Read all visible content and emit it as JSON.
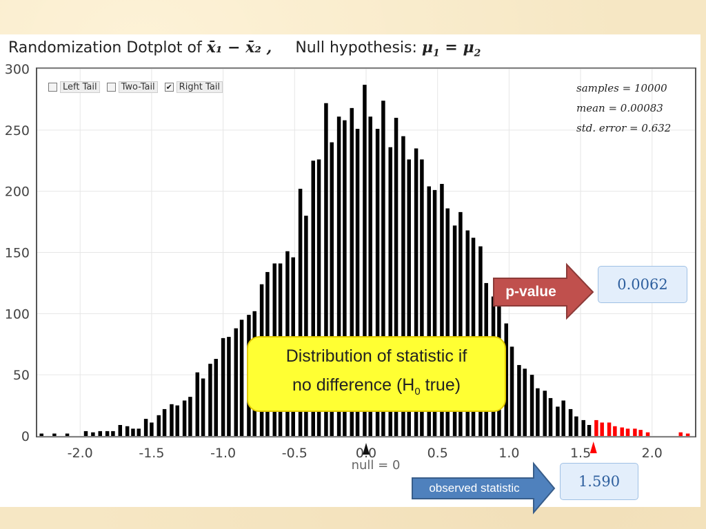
{
  "title": {
    "prefix": "Randomization Dotplot of",
    "statistic": "x̄₁ − x̄₂ ,",
    "null_label": "Null hypothesis:",
    "null_expr_left": "μ",
    "null_expr_sub1": "1",
    "null_expr_eq": " = μ",
    "null_expr_sub2": "2"
  },
  "tail_options": [
    {
      "label": "Left Tail",
      "checked": false
    },
    {
      "label": "Two-Tail",
      "checked": false
    },
    {
      "label": "Right Tail",
      "checked": true
    }
  ],
  "checkmark": "✔",
  "stats": {
    "samples": "samples = 10000",
    "mean": "mean = 0.00083",
    "std_error": "std. error = 0.632"
  },
  "callout": {
    "line1": "Distribution of statistic if",
    "line2_pre": "no difference (H",
    "line2_sub": "0",
    "line2_post": " true)"
  },
  "p_value": {
    "arrow_label": "p-value",
    "value": "0.0062"
  },
  "observed": {
    "arrow_label": "observed statistic",
    "value": "1.590"
  },
  "null_marker_label": "null = 0",
  "colors": {
    "bar": "#000000",
    "tail_bar": "#ff0000",
    "pvalue_arrow": "#c0504d",
    "observed_arrow": "#4f81bd",
    "callout": "#ffff33",
    "grid": "#e6e6e6"
  },
  "chart_data": {
    "type": "bar",
    "xlim": [
      -2.3,
      2.3
    ],
    "ylim": [
      0,
      300
    ],
    "xticks": [
      "-2.0",
      "-1.5",
      "-1.0",
      "-0.5",
      "0.0",
      "0.5",
      "1.0",
      "1.5",
      "2.0"
    ],
    "xtick_values": [
      -2.0,
      -1.5,
      -1.0,
      -0.5,
      0.0,
      0.5,
      1.0,
      1.5,
      2.0
    ],
    "yticks": [
      "0",
      "50",
      "100",
      "150",
      "200",
      "250",
      "300"
    ],
    "ytick_values": [
      0,
      50,
      100,
      150,
      200,
      250,
      300
    ],
    "grid": true,
    "observed_value": 1.59,
    "tail": "right",
    "bars": [
      {
        "x": -2.27,
        "y": 2
      },
      {
        "x": -2.18,
        "y": 2
      },
      {
        "x": -2.09,
        "y": 2
      },
      {
        "x": -1.96,
        "y": 4
      },
      {
        "x": -1.91,
        "y": 3
      },
      {
        "x": -1.86,
        "y": 4
      },
      {
        "x": -1.81,
        "y": 4
      },
      {
        "x": -1.77,
        "y": 4
      },
      {
        "x": -1.72,
        "y": 9
      },
      {
        "x": -1.67,
        "y": 8
      },
      {
        "x": -1.63,
        "y": 6
      },
      {
        "x": -1.59,
        "y": 6
      },
      {
        "x": -1.54,
        "y": 14
      },
      {
        "x": -1.5,
        "y": 11
      },
      {
        "x": -1.45,
        "y": 17
      },
      {
        "x": -1.41,
        "y": 22
      },
      {
        "x": -1.36,
        "y": 26
      },
      {
        "x": -1.32,
        "y": 25
      },
      {
        "x": -1.27,
        "y": 29
      },
      {
        "x": -1.23,
        "y": 32
      },
      {
        "x": -1.18,
        "y": 52
      },
      {
        "x": -1.14,
        "y": 47
      },
      {
        "x": -1.09,
        "y": 59
      },
      {
        "x": -1.05,
        "y": 63
      },
      {
        "x": -1.0,
        "y": 80
      },
      {
        "x": -0.96,
        "y": 81
      },
      {
        "x": -0.91,
        "y": 88
      },
      {
        "x": -0.87,
        "y": 95
      },
      {
        "x": -0.82,
        "y": 99
      },
      {
        "x": -0.78,
        "y": 102
      },
      {
        "x": -0.73,
        "y": 124
      },
      {
        "x": -0.69,
        "y": 134
      },
      {
        "x": -0.64,
        "y": 141
      },
      {
        "x": -0.6,
        "y": 141
      },
      {
        "x": -0.55,
        "y": 151
      },
      {
        "x": -0.51,
        "y": 146
      },
      {
        "x": -0.46,
        "y": 202
      },
      {
        "x": -0.42,
        "y": 180
      },
      {
        "x": -0.37,
        "y": 225
      },
      {
        "x": -0.33,
        "y": 226
      },
      {
        "x": -0.28,
        "y": 272
      },
      {
        "x": -0.24,
        "y": 240
      },
      {
        "x": -0.19,
        "y": 261
      },
      {
        "x": -0.15,
        "y": 258
      },
      {
        "x": -0.1,
        "y": 268
      },
      {
        "x": -0.06,
        "y": 251
      },
      {
        "x": -0.01,
        "y": 287
      },
      {
        "x": 0.03,
        "y": 261
      },
      {
        "x": 0.08,
        "y": 251
      },
      {
        "x": 0.12,
        "y": 274
      },
      {
        "x": 0.17,
        "y": 236
      },
      {
        "x": 0.21,
        "y": 260
      },
      {
        "x": 0.26,
        "y": 245
      },
      {
        "x": 0.3,
        "y": 226
      },
      {
        "x": 0.35,
        "y": 235
      },
      {
        "x": 0.39,
        "y": 226
      },
      {
        "x": 0.44,
        "y": 204
      },
      {
        "x": 0.48,
        "y": 201
      },
      {
        "x": 0.53,
        "y": 206
      },
      {
        "x": 0.57,
        "y": 186
      },
      {
        "x": 0.62,
        "y": 172
      },
      {
        "x": 0.66,
        "y": 183
      },
      {
        "x": 0.71,
        "y": 168
      },
      {
        "x": 0.75,
        "y": 162
      },
      {
        "x": 0.8,
        "y": 155
      },
      {
        "x": 0.84,
        "y": 125
      },
      {
        "x": 0.89,
        "y": 114
      },
      {
        "x": 0.93,
        "y": 109
      },
      {
        "x": 0.98,
        "y": 92
      },
      {
        "x": 1.02,
        "y": 73
      },
      {
        "x": 1.07,
        "y": 58
      },
      {
        "x": 1.11,
        "y": 55
      },
      {
        "x": 1.16,
        "y": 50
      },
      {
        "x": 1.2,
        "y": 39
      },
      {
        "x": 1.25,
        "y": 37
      },
      {
        "x": 1.29,
        "y": 31
      },
      {
        "x": 1.34,
        "y": 24
      },
      {
        "x": 1.38,
        "y": 29
      },
      {
        "x": 1.43,
        "y": 22
      },
      {
        "x": 1.47,
        "y": 16
      },
      {
        "x": 1.52,
        "y": 13
      },
      {
        "x": 1.56,
        "y": 9
      },
      {
        "x": 1.61,
        "y": 13
      },
      {
        "x": 1.65,
        "y": 11
      },
      {
        "x": 1.7,
        "y": 11
      },
      {
        "x": 1.74,
        "y": 8
      },
      {
        "x": 1.79,
        "y": 7
      },
      {
        "x": 1.83,
        "y": 6
      },
      {
        "x": 1.88,
        "y": 6
      },
      {
        "x": 1.92,
        "y": 5
      },
      {
        "x": 1.97,
        "y": 3
      },
      {
        "x": 2.2,
        "y": 3
      },
      {
        "x": 2.25,
        "y": 2
      }
    ]
  }
}
